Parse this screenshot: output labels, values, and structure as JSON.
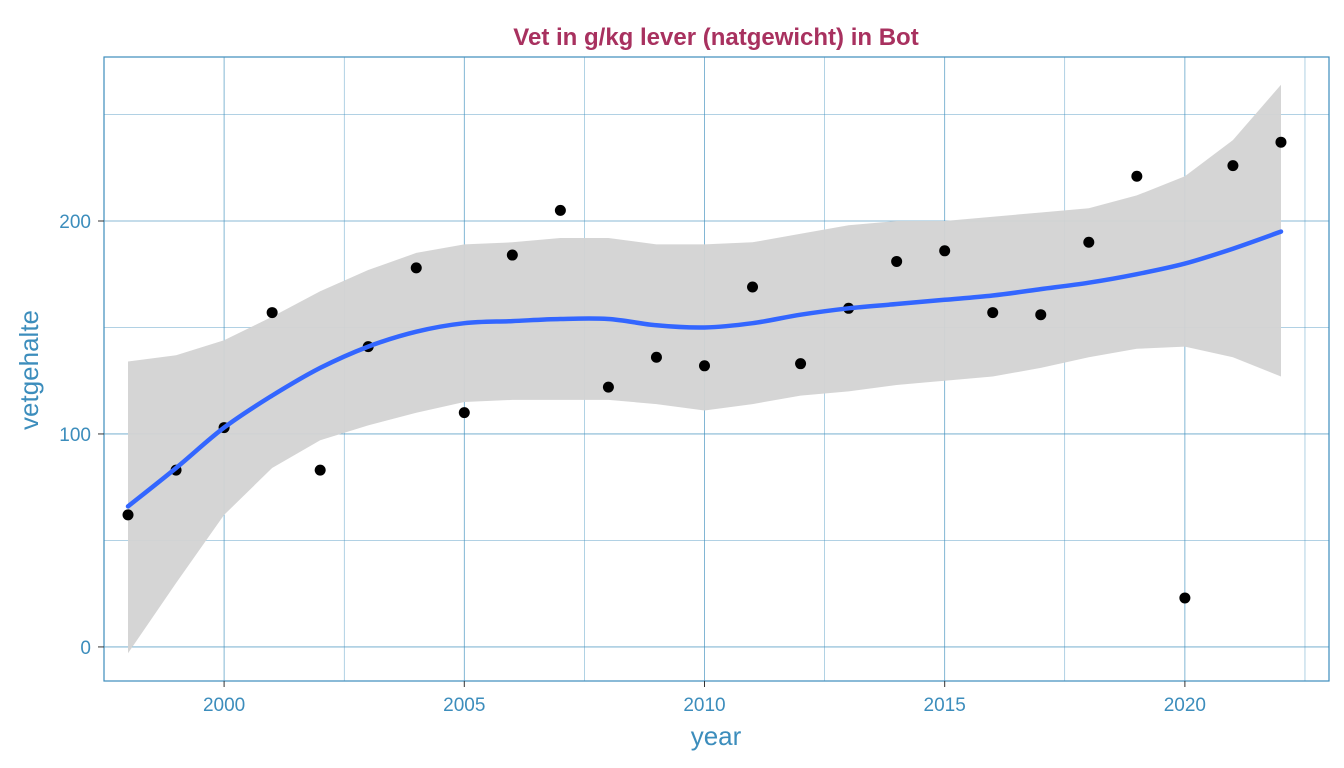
{
  "chart_data": {
    "type": "scatter",
    "title": "Vet in g/kg lever (natgewicht) in Bot",
    "xlabel": "year",
    "ylabel": "vetgehalte",
    "xlim": [
      1997.5,
      2023.0
    ],
    "ylim": [
      -16,
      277
    ],
    "x_ticks": [
      2000,
      2005,
      2010,
      2015,
      2020
    ],
    "y_ticks": [
      0,
      100,
      200
    ],
    "x_tick_labels": [
      "2000",
      "2005",
      "2010",
      "2015",
      "2020"
    ],
    "y_tick_labels": [
      "0",
      "100",
      "200"
    ],
    "grid": true,
    "legend": "none",
    "points": {
      "x": [
        1998,
        1999,
        2000,
        2001,
        2002,
        2003,
        2004,
        2005,
        2006,
        2007,
        2008,
        2009,
        2010,
        2011,
        2012,
        2013,
        2014,
        2015,
        2016,
        2017,
        2018,
        2019,
        2020,
        2021,
        2022
      ],
      "y": [
        62,
        83,
        103,
        157,
        83,
        141,
        178,
        110,
        184,
        205,
        122,
        136,
        132,
        169,
        133,
        159,
        181,
        186,
        157,
        156,
        190,
        221,
        23,
        226,
        237
      ]
    },
    "smooth": {
      "x": [
        1998,
        1999,
        2000,
        2001,
        2002,
        2003,
        2004,
        2005,
        2006,
        2007,
        2008,
        2009,
        2010,
        2011,
        2012,
        2013,
        2014,
        2015,
        2016,
        2017,
        2018,
        2019,
        2020,
        2021,
        2022
      ],
      "y": [
        66,
        84,
        103,
        118,
        131,
        141,
        148,
        152,
        153,
        154,
        154,
        151,
        150,
        152,
        156,
        159,
        161,
        163,
        165,
        168,
        171,
        175,
        180,
        187,
        195
      ],
      "lower": [
        -3,
        30,
        62,
        84,
        97,
        104,
        110,
        115,
        116,
        116,
        116,
        114,
        111,
        114,
        118,
        120,
        123,
        125,
        127,
        131,
        136,
        140,
        141,
        136,
        127
      ],
      "upper": [
        134,
        137,
        144,
        155,
        167,
        177,
        185,
        189,
        190,
        192,
        192,
        189,
        189,
        190,
        194,
        198,
        200,
        200,
        202,
        204,
        206,
        212,
        221,
        238,
        264
      ]
    },
    "colors": {
      "title": "#a8315f",
      "axis": "#3c8dbc",
      "ribbon": "#d3d3d3",
      "line": "#3366ff",
      "point": "#000000"
    }
  }
}
